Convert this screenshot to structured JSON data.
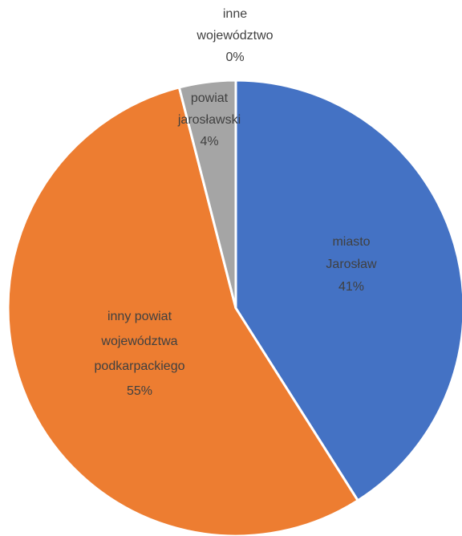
{
  "chart_data": {
    "type": "pie",
    "title": "",
    "slices": [
      {
        "name": "miasto Jarosław",
        "label_lines": [
          "miasto",
          "Jarosław"
        ],
        "pct_label": "41%",
        "value": 41,
        "color": "#4472C4"
      },
      {
        "name": "inny powiat województwa podkarpackiego",
        "label_lines": [
          "inny powiat",
          "województwa",
          "podkarpackiego"
        ],
        "pct_label": "55%",
        "value": 55,
        "color": "#ED7D31"
      },
      {
        "name": "powiat jarosławski",
        "label_lines": [
          "powiat",
          "jarosławski"
        ],
        "pct_label": "4%",
        "value": 4,
        "color": "#A5A5A5"
      },
      {
        "name": "inne województwo",
        "label_lines": [
          "inne",
          "województwo"
        ],
        "pct_label": "0%",
        "value": 0,
        "color": "#FFC000"
      }
    ],
    "start_angle": "12 o'clock",
    "direction": "clockwise",
    "legend": "none"
  }
}
